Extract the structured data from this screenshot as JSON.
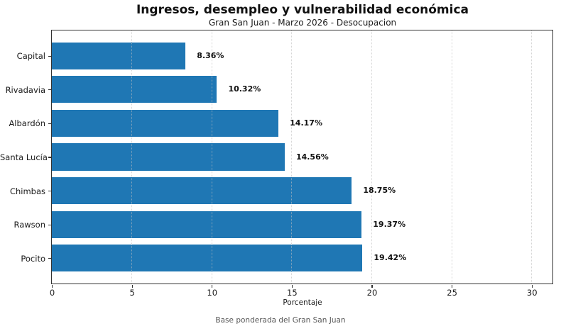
{
  "chart_data": {
    "type": "bar",
    "orientation": "horizontal",
    "title": "Ingresos, desempleo y vulnerabilidad económica",
    "subtitle": "Gran San Juan - Marzo 2026 - Desocupacion",
    "xlabel": "Porcentaje",
    "ylabel": "",
    "categories": [
      "Capital",
      "Rivadavia",
      "Albardón",
      "Santa Lucía",
      "Chimbas",
      "Rawson",
      "Pocito"
    ],
    "values": [
      8.36,
      10.32,
      14.17,
      14.56,
      18.75,
      19.37,
      19.42
    ],
    "value_labels": [
      "8.36%",
      "10.32%",
      "14.17%",
      "14.56%",
      "18.75%",
      "19.37%",
      "19.42%"
    ],
    "xticks": [
      0,
      5,
      10,
      15,
      20,
      25,
      30
    ],
    "xlim": [
      0,
      31.3
    ],
    "grid": true,
    "grid_style": "dotted-vertical",
    "legend": "none",
    "bar_color": "#1f77b4",
    "annotation": "Base ponderada del Gran San Juan"
  }
}
